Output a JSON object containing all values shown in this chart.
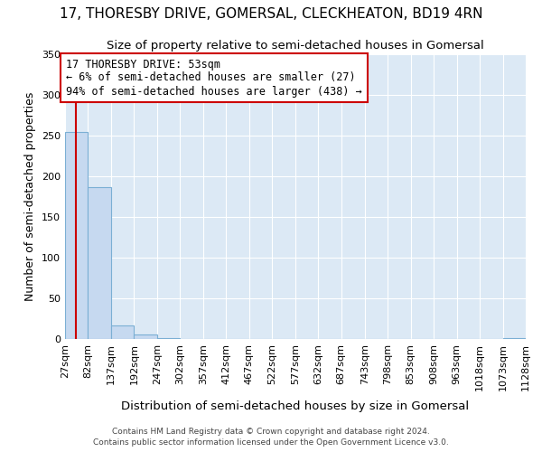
{
  "title": "17, THORESBY DRIVE, GOMERSAL, CLECKHEATON, BD19 4RN",
  "subtitle": "Size of property relative to semi-detached houses in Gomersal",
  "xlabel": "Distribution of semi-detached houses by size in Gomersal",
  "ylabel": "Number of semi-detached properties",
  "footnote1": "Contains HM Land Registry data © Crown copyright and database right 2024.",
  "footnote2": "Contains public sector information licensed under the Open Government Licence v3.0.",
  "bin_edges": [
    27,
    82,
    137,
    192,
    247,
    302,
    357,
    412,
    467,
    522,
    577,
    632,
    687,
    743,
    798,
    853,
    908,
    963,
    1018,
    1073,
    1128
  ],
  "bar_heights": [
    255,
    187,
    17,
    6,
    1,
    0,
    0,
    0,
    0,
    0,
    0,
    0,
    0,
    0,
    0,
    0,
    0,
    0,
    0,
    1
  ],
  "bar_color": "#c6d9f0",
  "bar_edge_color": "#7bafd4",
  "highlight_color": "#cc0000",
  "property_size": 53,
  "annotation_line1": "17 THORESBY DRIVE: 53sqm",
  "annotation_line2": "← 6% of semi-detached houses are smaller (27)",
  "annotation_line3": "94% of semi-detached houses are larger (438) →",
  "annotation_box_color": "#ffffff",
  "annotation_box_edge_color": "#cc0000",
  "ylim": [
    0,
    350
  ],
  "yticks": [
    0,
    50,
    100,
    150,
    200,
    250,
    300,
    350
  ],
  "title_fontsize": 11,
  "subtitle_fontsize": 9.5,
  "tick_label_fontsize": 8,
  "ylabel_fontsize": 9,
  "xlabel_fontsize": 9.5,
  "footnote_fontsize": 6.5,
  "plot_bg_color": "#dce9f5",
  "figure_bg_color": "#ffffff",
  "grid_color": "#ffffff"
}
